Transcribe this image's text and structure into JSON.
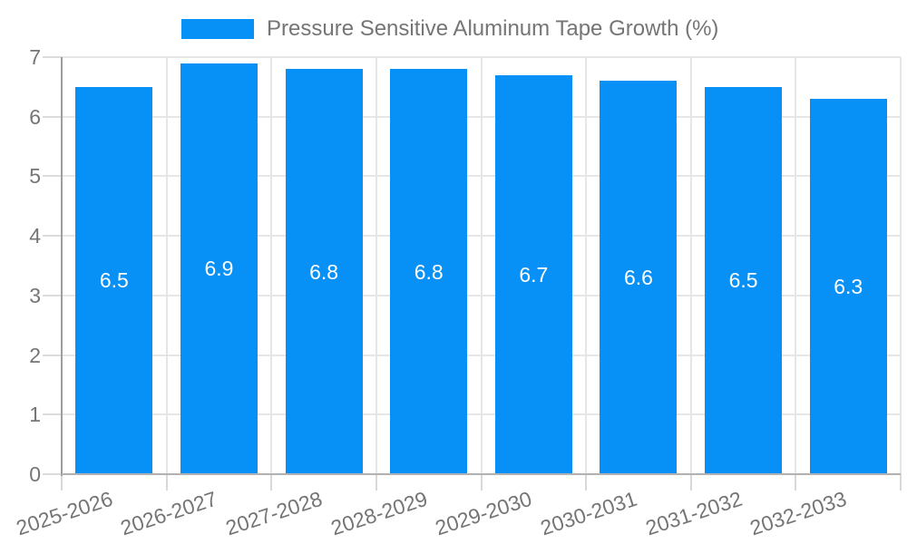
{
  "chart_data": {
    "type": "bar",
    "title": "Pressure Sensitive Aluminum Tape Growth (%)",
    "categories": [
      "2025-2026",
      "2026-2027",
      "2027-2028",
      "2028-2029",
      "2029-2030",
      "2030-2031",
      "2031-2032",
      "2032-2033"
    ],
    "values": [
      6.5,
      6.9,
      6.8,
      6.8,
      6.7,
      6.6,
      6.5,
      6.3
    ],
    "value_labels": [
      "6.5",
      "6.9",
      "6.8",
      "6.8",
      "6.7",
      "6.6",
      "6.5",
      "6.3"
    ],
    "xlabel": "",
    "ylabel": "",
    "ylim": [
      0,
      7
    ],
    "yticks": [
      0,
      1,
      2,
      3,
      4,
      5,
      6,
      7
    ],
    "grid": true,
    "legend_position": "top",
    "colors": {
      "bar": "#0790F5",
      "grid": "#e6e6e6",
      "axis": "#9e9e9e",
      "baseline": "#b2b2b2",
      "tick_text": "#757575",
      "value_text": "#ffffff",
      "background": "#ffffff"
    }
  }
}
